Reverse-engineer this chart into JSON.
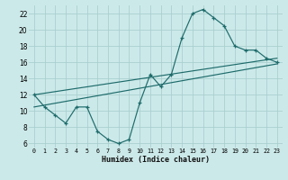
{
  "xlabel": "Humidex (Indice chaleur)",
  "ylabel": "",
  "bg_color": "#cce9e9",
  "grid_color": "#aacfcf",
  "line_color": "#1e6b6b",
  "xlim": [
    -0.5,
    23.5
  ],
  "ylim": [
    5.5,
    23
  ],
  "yticks": [
    6,
    8,
    10,
    12,
    14,
    16,
    18,
    20,
    22
  ],
  "xticks": [
    0,
    1,
    2,
    3,
    4,
    5,
    6,
    7,
    8,
    9,
    10,
    11,
    12,
    13,
    14,
    15,
    16,
    17,
    18,
    19,
    20,
    21,
    22,
    23
  ],
  "line1_x": [
    0,
    1,
    2,
    3,
    4,
    5,
    6,
    7,
    8,
    9,
    10,
    11,
    12,
    13,
    14,
    15,
    16,
    17,
    18,
    19,
    20,
    21,
    22,
    23
  ],
  "line1_y": [
    12.0,
    10.5,
    9.5,
    8.5,
    10.5,
    10.5,
    7.5,
    6.5,
    6.0,
    6.5,
    11.0,
    14.5,
    13.0,
    14.5,
    19.0,
    22.0,
    22.5,
    21.5,
    20.5,
    18.0,
    17.5,
    17.5,
    16.5,
    16.0
  ],
  "line2_x": [
    0,
    23
  ],
  "line2_y": [
    12.0,
    16.5
  ],
  "line3_x": [
    0,
    23
  ],
  "line3_y": [
    10.5,
    15.8
  ]
}
